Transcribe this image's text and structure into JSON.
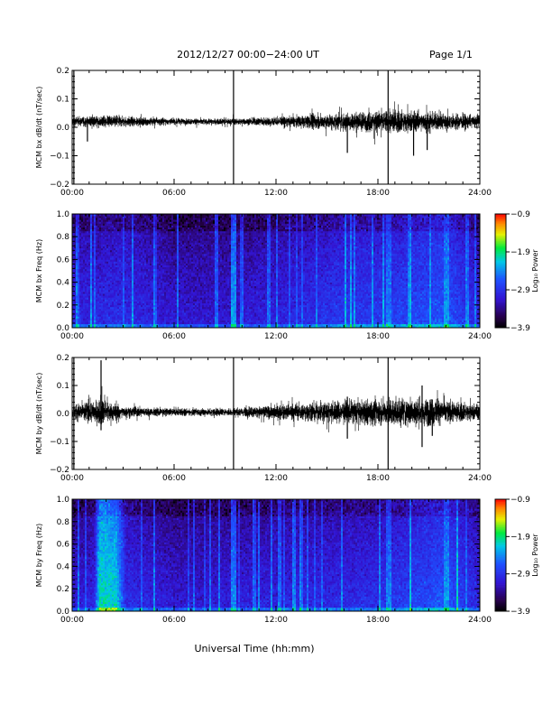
{
  "header": {
    "title": "2012/12/27  00:00−24:00 UT",
    "page": "Page 1/1"
  },
  "xaxis_title": "Universal Time (hh:mm)",
  "chart_data": [
    {
      "name": "bx-waveform",
      "type": "line",
      "ylabel": "MCM bx dB/dt (nT/sec)",
      "x_tick_labels": [
        "00:00",
        "06:00",
        "12:00",
        "18:00",
        "24:00"
      ],
      "x_ticks_hours": [
        0,
        6,
        12,
        18,
        24
      ],
      "xlim_hours": [
        0,
        24
      ],
      "ylim": [
        -0.2,
        0.2
      ],
      "y_ticks": [
        -0.2,
        -0.1,
        0.0,
        0.1,
        0.2
      ],
      "y_tick_labels": [
        "−0.2",
        "−0.1",
        "0.0",
        "0.1",
        "0.2"
      ],
      "baseline": 0.02,
      "noise_profile": [
        {
          "hour": 0,
          "amp": 0.012
        },
        {
          "hour": 2,
          "amp": 0.015
        },
        {
          "hour": 6,
          "amp": 0.008
        },
        {
          "hour": 9,
          "amp": 0.008
        },
        {
          "hour": 12,
          "amp": 0.012
        },
        {
          "hour": 15,
          "amp": 0.02
        },
        {
          "hour": 19,
          "amp": 0.03
        },
        {
          "hour": 22,
          "amp": 0.022
        },
        {
          "hour": 24,
          "amp": 0.015
        }
      ],
      "spikes": [
        {
          "hour": 0.1,
          "min": -0.2,
          "max": 0.2
        },
        {
          "hour": 9.5,
          "min": -0.2,
          "max": 0.2
        },
        {
          "hour": 18.6,
          "min": -0.2,
          "max": 0.2
        },
        {
          "hour": 16.2,
          "min": -0.09,
          "max": 0.03
        },
        {
          "hour": 20.1,
          "min": -0.1,
          "max": 0.03
        },
        {
          "hour": 20.9,
          "min": -0.08,
          "max": 0.03
        },
        {
          "hour": 0.9,
          "min": -0.05,
          "max": 0.03
        }
      ]
    },
    {
      "name": "bx-spectrogram",
      "type": "heatmap",
      "ylabel": "MCM bx Freq (Hz)",
      "x_tick_labels": [
        "00:00",
        "06:00",
        "12:00",
        "18:00",
        "24:00"
      ],
      "x_ticks_hours": [
        0,
        6,
        12,
        18,
        24
      ],
      "xlim_hours": [
        0,
        24
      ],
      "ylim": [
        0.0,
        1.0
      ],
      "y_ticks": [
        0.0,
        0.2,
        0.4,
        0.6,
        0.8,
        1.0
      ],
      "y_tick_labels": [
        "0.0",
        "0.2",
        "0.4",
        "0.6",
        "0.8",
        "1.0"
      ],
      "colorbar": {
        "label": "Log₁₀ Power",
        "range": [
          -3.9,
          -0.9
        ],
        "tick_values": [
          -0.9,
          -1.9,
          -2.9,
          -3.9
        ],
        "tick_labels": [
          "−0.9",
          "−1.9",
          "−2.9",
          "−3.9"
        ]
      },
      "activity_profile": [
        {
          "hour": 0,
          "level": -3.0
        },
        {
          "hour": 3,
          "level": -2.9
        },
        {
          "hour": 6,
          "level": -3.1
        },
        {
          "hour": 9,
          "level": -3.1
        },
        {
          "hour": 12,
          "level": -3.0
        },
        {
          "hour": 16,
          "level": -2.8
        },
        {
          "hour": 18,
          "level": -2.8
        },
        {
          "hour": 22,
          "level": -2.6
        },
        {
          "hour": 24,
          "level": -3.0
        }
      ],
      "bright_bands": [
        {
          "hour": 9.5,
          "level": -2.3
        },
        {
          "hour": 18.6,
          "level": -2.4
        },
        {
          "hour": 22.0,
          "level": -2.3
        }
      ]
    },
    {
      "name": "by-waveform",
      "type": "line",
      "ylabel": "MCM by dB/dt (nT/sec)",
      "x_tick_labels": [
        "00:00",
        "06:00",
        "12:00",
        "18:00",
        "24:00"
      ],
      "x_ticks_hours": [
        0,
        6,
        12,
        18,
        24
      ],
      "xlim_hours": [
        0,
        24
      ],
      "ylim": [
        -0.2,
        0.2
      ],
      "y_ticks": [
        -0.2,
        -0.1,
        0.0,
        0.1,
        0.2
      ],
      "y_tick_labels": [
        "−0.2",
        "−0.1",
        "0.0",
        "0.1",
        "0.2"
      ],
      "baseline": 0.005,
      "noise_profile": [
        {
          "hour": 0,
          "amp": 0.02
        },
        {
          "hour": 1.8,
          "amp": 0.035
        },
        {
          "hour": 3,
          "amp": 0.015
        },
        {
          "hour": 6,
          "amp": 0.01
        },
        {
          "hour": 9,
          "amp": 0.01
        },
        {
          "hour": 12,
          "amp": 0.018
        },
        {
          "hour": 16,
          "amp": 0.03
        },
        {
          "hour": 20,
          "amp": 0.04
        },
        {
          "hour": 24,
          "amp": 0.02
        }
      ],
      "spikes": [
        {
          "hour": 0.1,
          "min": -0.2,
          "max": 0.2
        },
        {
          "hour": 9.5,
          "min": -0.2,
          "max": 0.2
        },
        {
          "hour": 18.6,
          "min": -0.2,
          "max": 0.2
        },
        {
          "hour": 1.7,
          "min": -0.06,
          "max": 0.19
        },
        {
          "hour": 16.2,
          "min": -0.09,
          "max": 0.06
        },
        {
          "hour": 20.6,
          "min": -0.12,
          "max": 0.1
        },
        {
          "hour": 21.2,
          "min": -0.08,
          "max": 0.05
        }
      ]
    },
    {
      "name": "by-spectrogram",
      "type": "heatmap",
      "ylabel": "MCM by Freq (Hz)",
      "x_tick_labels": [
        "00:00",
        "06:00",
        "12:00",
        "18:00",
        "24:00"
      ],
      "x_ticks_hours": [
        0,
        6,
        12,
        18,
        24
      ],
      "xlim_hours": [
        0,
        24
      ],
      "ylim": [
        0.0,
        1.0
      ],
      "y_ticks": [
        0.0,
        0.2,
        0.4,
        0.6,
        0.8,
        1.0
      ],
      "y_tick_labels": [
        "0.0",
        "0.2",
        "0.4",
        "0.6",
        "0.8",
        "1.0"
      ],
      "colorbar": {
        "label": "Log₁₀ Power",
        "range": [
          -3.9,
          -0.9
        ],
        "tick_values": [
          -0.9,
          -1.9,
          -2.9,
          -3.9
        ],
        "tick_labels": [
          "−0.9",
          "−1.9",
          "−2.9",
          "−3.9"
        ]
      },
      "activity_profile": [
        {
          "hour": 0,
          "level": -3.1
        },
        {
          "hour": 1.3,
          "level": -3.0
        },
        {
          "hour": 1.6,
          "level": -2.0
        },
        {
          "hour": 2.6,
          "level": -2.1
        },
        {
          "hour": 3.2,
          "level": -2.9
        },
        {
          "hour": 6,
          "level": -3.1
        },
        {
          "hour": 12,
          "level": -3.0
        },
        {
          "hour": 18,
          "level": -2.9
        },
        {
          "hour": 22,
          "level": -2.6
        },
        {
          "hour": 24,
          "level": -3.0
        }
      ],
      "bright_bands": [
        {
          "hour": 9.5,
          "level": -2.4
        },
        {
          "hour": 18.6,
          "level": -2.4
        },
        {
          "hour": 22.0,
          "level": -2.3
        }
      ]
    }
  ]
}
